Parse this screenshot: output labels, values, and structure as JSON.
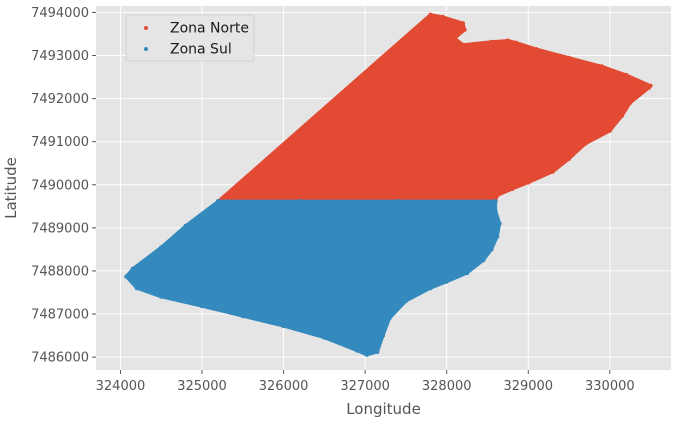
{
  "chart_data": {
    "type": "scatter",
    "xlabel": "Longitude",
    "ylabel": "Latitude",
    "xlim": [
      323700,
      330750
    ],
    "ylim": [
      7485700,
      7494150
    ],
    "xticks": [
      324000,
      325000,
      326000,
      327000,
      328000,
      329000,
      330000
    ],
    "yticks": [
      7486000,
      7487000,
      7488000,
      7489000,
      7490000,
      7491000,
      7492000,
      7493000,
      7494000
    ],
    "x_tick_labels": [
      "324000",
      "325000",
      "326000",
      "327000",
      "328000",
      "329000",
      "330000"
    ],
    "y_tick_labels": [
      "7486000",
      "7487000",
      "7488000",
      "7489000",
      "7490000",
      "7491000",
      "7492000",
      "7493000",
      "7494000"
    ],
    "grid": true,
    "legend_position": "top-left",
    "series": [
      {
        "name": "Zona Norte",
        "color": "#E24A33",
        "x": [
          325200,
          327800,
          327950,
          328200,
          328220,
          328100,
          328200,
          328550,
          328750,
          328850,
          329100,
          329500,
          329900,
          330200,
          330500,
          330480,
          330250,
          330150,
          330000,
          329700,
          329500,
          329300,
          329000,
          328800,
          328620,
          328600,
          327400,
          326200,
          325200
        ],
        "y": [
          7489620,
          7493950,
          7493900,
          7493750,
          7493600,
          7493400,
          7493250,
          7493320,
          7493350,
          7493300,
          7493150,
          7492950,
          7492750,
          7492550,
          7492300,
          7492250,
          7491900,
          7491600,
          7491250,
          7490950,
          7490600,
          7490300,
          7490050,
          7489900,
          7489750,
          7489620,
          7489620,
          7489620,
          7489620
        ]
      },
      {
        "name": "Zona Sul",
        "color": "#348ABD",
        "x": [
          325200,
          326200,
          327400,
          328600,
          328600,
          328650,
          328620,
          328550,
          328450,
          328250,
          328000,
          327800,
          327500,
          327300,
          327220,
          327150,
          327020,
          326900,
          326500,
          326000,
          325500,
          325000,
          324500,
          324200,
          324070,
          324150,
          324500,
          324800,
          325200
        ],
        "y": [
          7489620,
          7489620,
          7489620,
          7489620,
          7489400,
          7489100,
          7488800,
          7488500,
          7488250,
          7487950,
          7487750,
          7487600,
          7487300,
          7486900,
          7486500,
          7486120,
          7486050,
          7486150,
          7486450,
          7486720,
          7486950,
          7487180,
          7487400,
          7487600,
          7487870,
          7488050,
          7488550,
          7489050,
          7489620
        ]
      }
    ]
  }
}
